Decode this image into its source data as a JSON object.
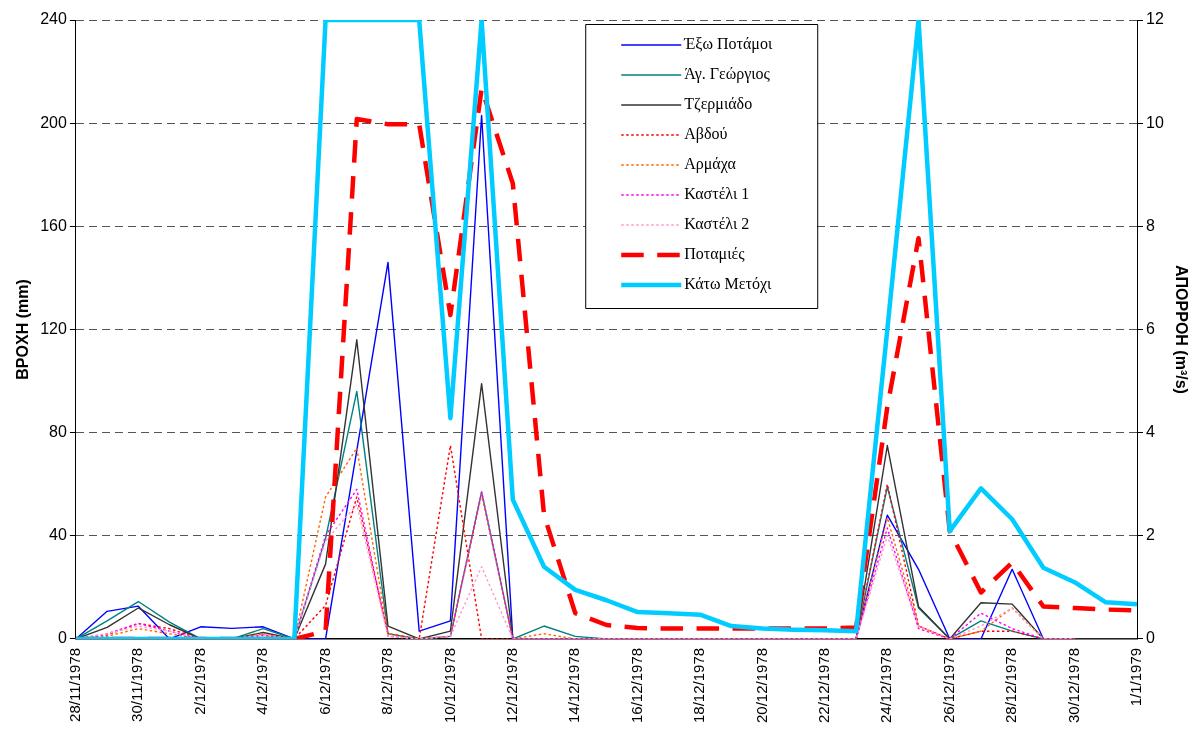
{
  "chart_data": {
    "type": "line",
    "categories": [
      "28/11/1978",
      null,
      "30/11/1978",
      null,
      "2/12/1978",
      null,
      "4/12/1978",
      null,
      "6/12/1978",
      null,
      "8/12/1978",
      null,
      "10/12/1978",
      null,
      "12/12/1978",
      null,
      "14/12/1978",
      null,
      "16/12/1978",
      null,
      "18/12/1978",
      null,
      "20/12/1978",
      null,
      "22/12/1978",
      null,
      "24/12/1978",
      null,
      "26/12/1978",
      null,
      "28/12/1978",
      null,
      "30/12/1978",
      null,
      "1/1/1979"
    ],
    "ylabel": "ΒΡΟΧΗ (mm)",
    "y2label": "ΑΠΟΡΡΟΗ (m³/s)",
    "ylim": [
      0,
      240
    ],
    "yticks": [
      0,
      40,
      80,
      120,
      160,
      200,
      240
    ],
    "y2lim": [
      0,
      12
    ],
    "y2ticks": [
      0,
      2,
      4,
      6,
      8,
      10,
      12
    ],
    "grid": "y",
    "legend": "top",
    "marker": "none",
    "series": [
      {
        "name": "Έξω Ποτάμοι",
        "color": "#0000ff",
        "line_style": "solid",
        "values": [
          0,
          10.7,
          12.7,
          0,
          4.7,
          4.1,
          4.7,
          0,
          0,
          73,
          146,
          3,
          7,
          203,
          0,
          0,
          0,
          0,
          0,
          0,
          0,
          0,
          0,
          0,
          0,
          0,
          48,
          27,
          0,
          0,
          27,
          0,
          0,
          null,
          null
        ]
      },
      {
        "name": "Άγ. Γεώργιος",
        "color": "#008080",
        "line_style": "solid",
        "values": [
          0,
          7,
          14.5,
          6.5,
          0,
          0,
          4,
          0,
          39,
          96,
          2,
          0,
          1,
          57,
          0,
          5,
          1,
          0,
          0,
          0,
          0,
          0,
          0,
          0,
          0,
          0,
          59,
          12,
          0,
          7,
          3,
          0,
          0,
          null,
          null
        ]
      },
      {
        "name": "Τζερμιάδο",
        "color": "#333333",
        "line_style": "solid",
        "values": [
          0,
          4.5,
          12,
          5.5,
          0,
          0,
          2.5,
          0,
          29,
          116,
          5,
          0,
          3,
          99,
          0,
          0,
          0,
          0,
          0,
          0,
          0,
          0,
          0,
          0,
          0,
          0,
          75,
          12.5,
          0,
          14,
          13.5,
          0,
          0,
          0,
          0
        ]
      },
      {
        "name": "Αβδού",
        "color": "#ff0000",
        "line_style": "dotted",
        "values": [
          0,
          1.5,
          6,
          4,
          0,
          0,
          1.5,
          0,
          13,
          55,
          2,
          0,
          75,
          0,
          0,
          0,
          0,
          0,
          0,
          0,
          0,
          0,
          0,
          0,
          0,
          0,
          60,
          5,
          0,
          3,
          3,
          0,
          0,
          null,
          null
        ]
      },
      {
        "name": "Αρμάχα",
        "color": "#ff6600",
        "line_style": "dotted",
        "values": [
          0,
          1,
          4,
          2,
          0,
          0,
          2,
          0,
          55,
          74,
          2,
          0,
          1,
          56,
          0,
          2,
          0,
          0,
          0,
          0,
          0,
          0,
          0,
          0,
          0,
          0,
          47,
          5,
          0,
          3,
          12,
          0,
          0,
          null,
          null
        ]
      },
      {
        "name": "Καστέλι 1",
        "color": "#ff00ff",
        "line_style": "dotted",
        "values": [
          0,
          2,
          6,
          3,
          0,
          0,
          1.5,
          0,
          40,
          58,
          1,
          0,
          1,
          57,
          0,
          0,
          0,
          0,
          0,
          0,
          0,
          0,
          0,
          0,
          0,
          0,
          43,
          4,
          0,
          10,
          4,
          0,
          0,
          null,
          null
        ]
      },
      {
        "name": "Καστέλι 2",
        "color": "#ff99cc",
        "line_style": "dotted",
        "values": [
          0,
          2,
          5,
          3,
          0,
          0,
          1.5,
          0,
          38,
          52,
          1,
          0,
          1,
          28,
          0,
          0,
          0,
          0,
          0,
          0,
          0,
          0,
          0,
          0,
          0,
          0,
          40,
          5,
          0,
          5,
          12,
          0,
          0,
          null,
          null
        ]
      },
      {
        "name": "Ποταμιές",
        "color": "#ff0000",
        "line_style": "dashed",
        "axis": "y2",
        "values": [
          0,
          0,
          0,
          0,
          0,
          0,
          0,
          0,
          0.15,
          10.08,
          9.98,
          9.98,
          6.28,
          10.67,
          8.83,
          2.4,
          0.5,
          0.27,
          0.21,
          0.2,
          0.2,
          0.2,
          0.2,
          0.2,
          0.2,
          0.22,
          4.5,
          7.77,
          2.09,
          0.9,
          1.48,
          0.63,
          0.6,
          0.57,
          0.55
        ]
      },
      {
        "name": "Κάτω Μετόχι",
        "color": "#00ccff",
        "line_style": "solid",
        "axis": "y2",
        "values": [
          0,
          0,
          0,
          0,
          0,
          0,
          0,
          0,
          12,
          12,
          12,
          12,
          4.28,
          12,
          2.7,
          1.4,
          0.95,
          0.75,
          0.52,
          0.5,
          0.47,
          0.25,
          0.2,
          0.18,
          0.17,
          0.15,
          6,
          12,
          2.09,
          2.92,
          2.32,
          1.38,
          1.1,
          0.71,
          0.67
        ]
      }
    ]
  }
}
